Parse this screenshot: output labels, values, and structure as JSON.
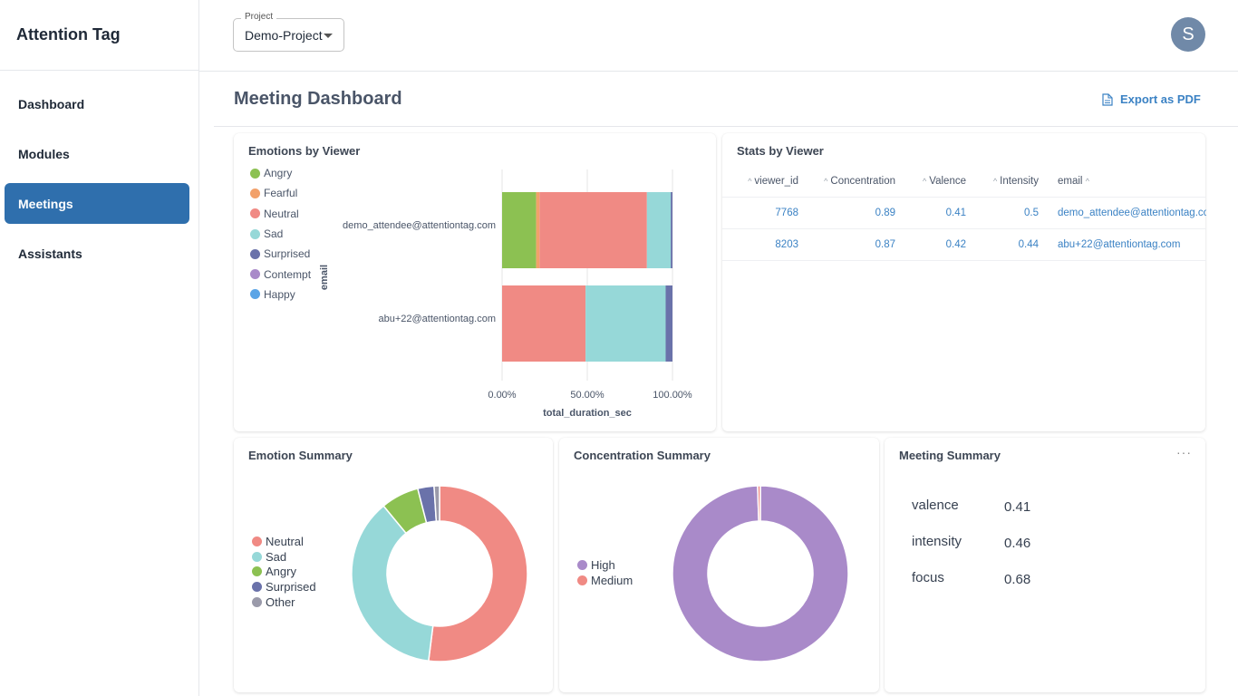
{
  "app": {
    "title": "Attention Tag"
  },
  "sidebar": {
    "items": [
      {
        "label": "Dashboard",
        "active": false
      },
      {
        "label": "Modules",
        "active": false
      },
      {
        "label": "Meetings",
        "active": true
      },
      {
        "label": "Assistants",
        "active": false
      }
    ]
  },
  "header": {
    "project_label": "Project",
    "project_value": "Demo-Project",
    "avatar_initial": "S"
  },
  "page": {
    "title": "Meeting Dashboard",
    "export_label": "Export as PDF"
  },
  "emotions_by_viewer": {
    "title": "Emotions by Viewer",
    "legend": [
      {
        "name": "Angry",
        "color": "#8cc152"
      },
      {
        "name": "Fearful",
        "color": "#f2a16b"
      },
      {
        "name": "Neutral",
        "color": "#f08a84"
      },
      {
        "name": "Sad",
        "color": "#96d8d8"
      },
      {
        "name": "Surprised",
        "color": "#6a72aa"
      },
      {
        "name": "Contempt",
        "color": "#a98ac9"
      },
      {
        "name": "Happy",
        "color": "#5aa4e6"
      }
    ]
  },
  "stats_by_viewer": {
    "title": "Stats by Viewer",
    "columns": [
      "viewer_id",
      "Concentration",
      "Valence",
      "Intensity",
      "email"
    ],
    "rows": [
      [
        "7768",
        "0.89",
        "0.41",
        "0.5",
        "demo_attendee@attentiontag.com"
      ],
      [
        "8203",
        "0.87",
        "0.42",
        "0.44",
        "abu+22@attentiontag.com"
      ]
    ]
  },
  "emotion_summary": {
    "title": "Emotion Summary",
    "legend": [
      {
        "name": "Neutral",
        "color": "#f08a84"
      },
      {
        "name": "Sad",
        "color": "#96d8d8"
      },
      {
        "name": "Angry",
        "color": "#8cc152"
      },
      {
        "name": "Surprised",
        "color": "#6a72aa"
      },
      {
        "name": "Other",
        "color": "#9a9aaa"
      }
    ]
  },
  "concentration_summary": {
    "title": "Concentration Summary",
    "legend": [
      {
        "name": "High",
        "color": "#a98ac9"
      },
      {
        "name": "Medium",
        "color": "#f08a84"
      }
    ]
  },
  "meeting_summary": {
    "title": "Meeting Summary",
    "menu": "···",
    "metrics": [
      {
        "label": "valence",
        "value": "0.41"
      },
      {
        "label": "intensity",
        "value": "0.46"
      },
      {
        "label": "focus",
        "value": "0.68"
      }
    ]
  },
  "chart_data": [
    {
      "type": "bar",
      "orientation": "horizontal",
      "stacked": true,
      "normalized": true,
      "title": "Emotions by Viewer",
      "xlabel": "total_duration_sec",
      "ylabel": "email",
      "categories": [
        "demo_attendee@attentiontag.com",
        "abu+22@attentiontag.com"
      ],
      "x_ticks": [
        "0.00%",
        "50.00%",
        "100.00%"
      ],
      "xlim": [
        0,
        100
      ],
      "series": [
        {
          "name": "Angry",
          "values": [
            20,
            0
          ]
        },
        {
          "name": "Fearful",
          "values": [
            2,
            0
          ]
        },
        {
          "name": "Neutral",
          "values": [
            63,
            49
          ]
        },
        {
          "name": "Sad",
          "values": [
            14,
            47
          ]
        },
        {
          "name": "Surprised",
          "values": [
            1,
            4
          ]
        },
        {
          "name": "Contempt",
          "values": [
            0,
            0
          ]
        },
        {
          "name": "Happy",
          "values": [
            0,
            0
          ]
        }
      ]
    },
    {
      "type": "pie",
      "donut": true,
      "title": "Emotion Summary",
      "labels": [
        "Neutral",
        "Sad",
        "Angry",
        "Surprised",
        "Other"
      ],
      "values": [
        52,
        37,
        7,
        3,
        1
      ]
    },
    {
      "type": "pie",
      "donut": true,
      "title": "Concentration Summary",
      "labels": [
        "High",
        "Medium"
      ],
      "values": [
        99.5,
        0.5
      ]
    }
  ]
}
